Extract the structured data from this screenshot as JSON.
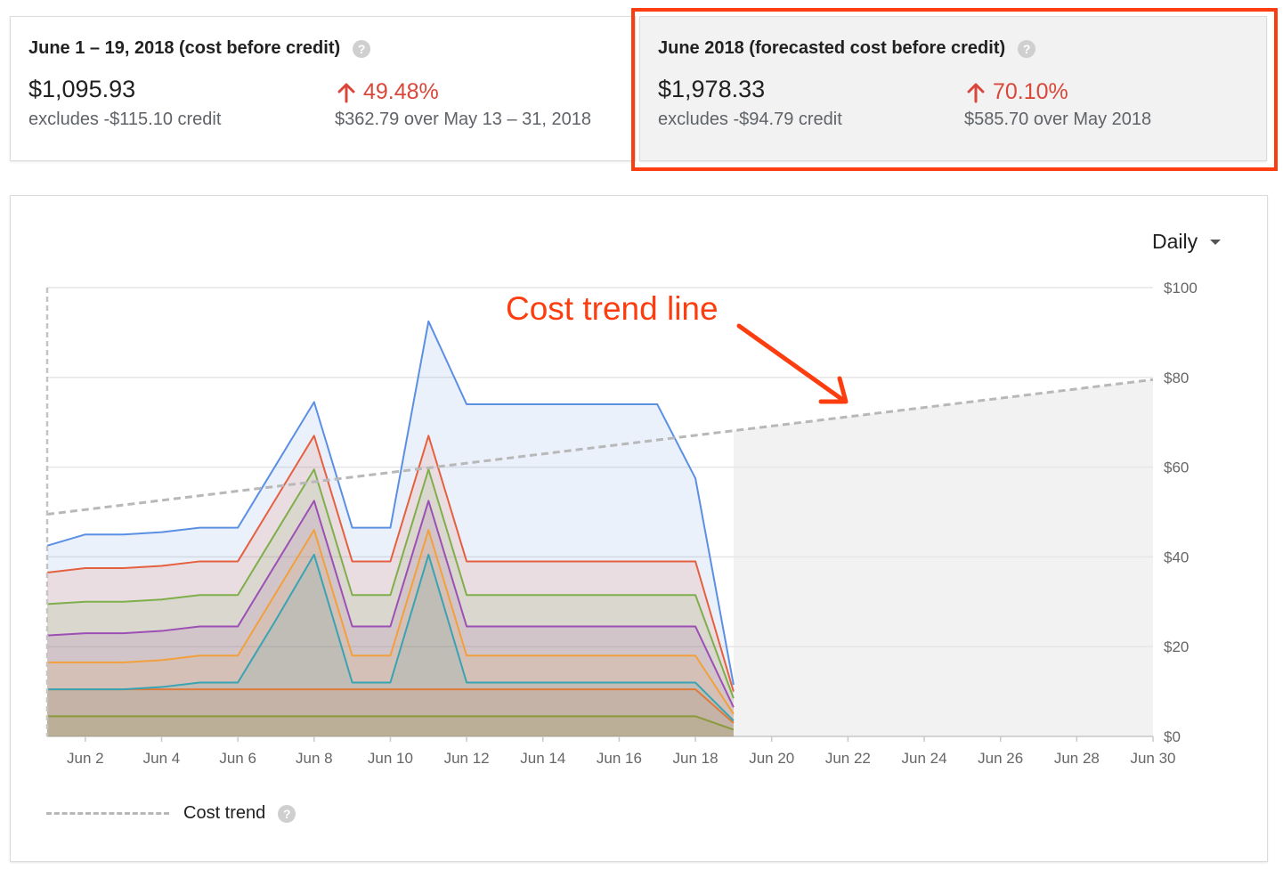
{
  "cards": [
    {
      "title": "June 1 – 19, 2018 (cost before credit)",
      "amount": "$1,095.93",
      "credit_note": "excludes -$115.10 credit",
      "change_pct": "49.48%",
      "comparison": "$362.79 over May 13 – 31, 2018"
    },
    {
      "title": "June 2018 (forecasted cost before credit)",
      "amount": "$1,978.33",
      "credit_note": "excludes -$94.79 credit",
      "change_pct": "70.10%",
      "comparison": "$585.70 over May 2018"
    }
  ],
  "granularity": {
    "selected": "Daily"
  },
  "annotation": {
    "text": "Cost trend line"
  },
  "legend": {
    "label": "Cost trend"
  },
  "colors": {
    "highlight": "#fc3d0f",
    "increase": "#d9473a",
    "trend": "#b8b8b8",
    "forecast_fill": "#f2f2f2"
  },
  "chart_data": {
    "type": "area",
    "stacked": true,
    "x_range": [
      1,
      30
    ],
    "x_ticks": [
      {
        "value": 2,
        "label": "Jun 2"
      },
      {
        "value": 4,
        "label": "Jun 4"
      },
      {
        "value": 6,
        "label": "Jun 6"
      },
      {
        "value": 8,
        "label": "Jun 8"
      },
      {
        "value": 10,
        "label": "Jun 10"
      },
      {
        "value": 12,
        "label": "Jun 12"
      },
      {
        "value": 14,
        "label": "Jun 14"
      },
      {
        "value": 16,
        "label": "Jun 16"
      },
      {
        "value": 18,
        "label": "Jun 18"
      },
      {
        "value": 20,
        "label": "Jun 20"
      },
      {
        "value": 22,
        "label": "Jun 22"
      },
      {
        "value": 24,
        "label": "Jun 24"
      },
      {
        "value": 26,
        "label": "Jun 26"
      },
      {
        "value": 28,
        "label": "Jun 28"
      },
      {
        "value": 30,
        "label": "Jun 30"
      }
    ],
    "ylim": [
      0,
      100
    ],
    "y_ticks": [
      {
        "value": 0,
        "label": "$0"
      },
      {
        "value": 20,
        "label": "$20"
      },
      {
        "value": 40,
        "label": "$40"
      },
      {
        "value": 60,
        "label": "$60"
      },
      {
        "value": 80,
        "label": "$80"
      },
      {
        "value": 100,
        "label": "$100"
      }
    ],
    "grid": true,
    "legend_position": "bottom-left",
    "x": [
      1,
      2,
      3,
      4,
      5,
      6,
      7,
      8,
      9,
      10,
      11,
      12,
      13,
      14,
      15,
      16,
      17,
      18,
      19
    ],
    "series": [
      {
        "color": "#8a9a3a",
        "values": [
          4.5,
          4.5,
          4.5,
          4.5,
          4.5,
          4.5,
          4.5,
          4.5,
          4.5,
          4.5,
          4.5,
          4.5,
          4.5,
          4.5,
          4.5,
          4.5,
          4.5,
          4.5,
          1.5
        ]
      },
      {
        "color": "#e07a3a",
        "values": [
          10.5,
          10.5,
          10.5,
          10.5,
          10.5,
          10.5,
          10.5,
          10.5,
          10.5,
          10.5,
          10.5,
          10.5,
          10.5,
          10.5,
          10.5,
          10.5,
          10.5,
          10.5,
          3
        ]
      },
      {
        "color": "#38a3b3",
        "values": [
          10.5,
          10.5,
          10.5,
          11,
          12,
          12,
          26,
          40.5,
          12,
          12,
          40.5,
          12,
          12,
          12,
          12,
          12,
          12,
          12,
          3.5
        ]
      },
      {
        "color": "#f2a03c",
        "values": [
          16.5,
          16.5,
          16.5,
          17,
          18,
          18,
          32,
          46,
          18,
          18,
          46,
          18,
          18,
          18,
          18,
          18,
          18,
          18,
          5
        ]
      },
      {
        "color": "#9c4fb5",
        "values": [
          22.5,
          23,
          23,
          23.5,
          24.5,
          24.5,
          38.5,
          52.5,
          24.5,
          24.5,
          52.5,
          24.5,
          24.5,
          24.5,
          24.5,
          24.5,
          24.5,
          24.5,
          6.5
        ]
      },
      {
        "color": "#7fae4a",
        "values": [
          29.5,
          30,
          30,
          30.5,
          31.5,
          31.5,
          45.5,
          59.5,
          31.5,
          31.5,
          59.5,
          31.5,
          31.5,
          31.5,
          31.5,
          31.5,
          31.5,
          31.5,
          8.5
        ]
      },
      {
        "color": "#e5603f",
        "values": [
          36.5,
          37.5,
          37.5,
          38,
          39,
          39,
          53,
          67,
          39,
          39,
          67,
          39,
          39,
          39,
          39,
          39,
          39,
          39,
          10
        ]
      },
      {
        "color": "#5b8fe3",
        "values": [
          42.5,
          45,
          45,
          45.5,
          46.5,
          46.5,
          60.5,
          74.5,
          46.5,
          46.5,
          92.5,
          74,
          74,
          74,
          74,
          74,
          74,
          57.5,
          11.5
        ]
      }
    ],
    "trend": {
      "name": "Cost trend",
      "x": [
        1,
        30
      ],
      "values": [
        49.5,
        79.5
      ]
    }
  }
}
